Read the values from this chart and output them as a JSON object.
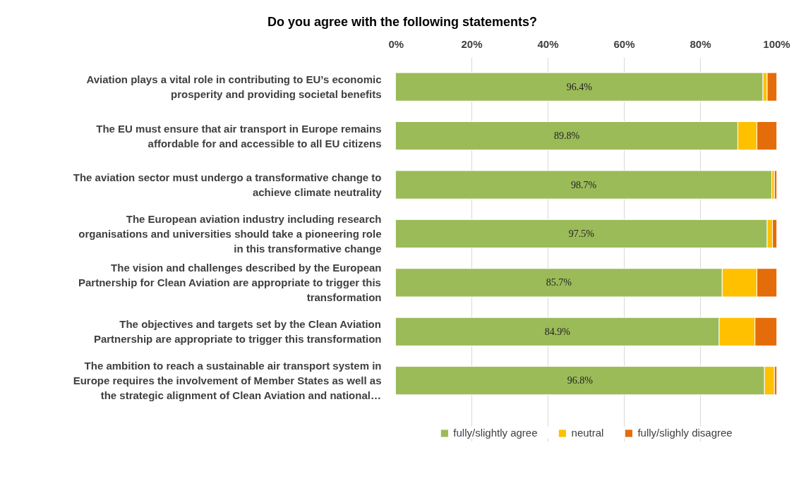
{
  "chart_data": {
    "type": "bar",
    "orientation": "horizontal",
    "stacked": true,
    "title": "Do you agree with the following statements?",
    "categories": [
      "Aviation plays a vital role in contributing to EU’s economic prosperity and providing societal benefits",
      "The EU must ensure that air transport in Europe remains affordable for and accessible to all EU citizens",
      "The aviation sector must undergo a transformative change to achieve climate neutrality",
      "The European aviation industry including research organisations and universities should take a pioneering role in this transformative change",
      "The vision and challenges described by the European Partnership for Clean Aviation are appropriate to trigger this transformation",
      "The objectives and targets set by the Clean Aviation Partnership are appropriate to trigger this transformation",
      "The ambition to reach a sustainable air transport system in Europe requires the involvement of Member States as well as the strategic alignment of Clean Aviation and national…"
    ],
    "series": [
      {
        "name": "fully/slightly agree",
        "color": "#9bbb59",
        "values": [
          96.4,
          89.8,
          98.7,
          97.5,
          85.7,
          84.9,
          96.8
        ],
        "value_labels": [
          "96.4%",
          "89.8%",
          "98.7%",
          "97.5%",
          "85.7%",
          "84.9%",
          "96.8%"
        ]
      },
      {
        "name": "neutral",
        "color": "#ffc000",
        "values": [
          1.1,
          5.0,
          0.7,
          1.4,
          9.1,
          9.4,
          2.6
        ]
      },
      {
        "name": "fully/slighly disagree",
        "color": "#e46c0a",
        "values": [
          2.5,
          5.2,
          0.6,
          1.1,
          5.2,
          5.7,
          0.6
        ]
      }
    ],
    "xlim": [
      0,
      100
    ],
    "xticks": [
      {
        "value": 0,
        "label": "0%"
      },
      {
        "value": 20,
        "label": "20%"
      },
      {
        "value": 40,
        "label": "40%"
      },
      {
        "value": 60,
        "label": "60%"
      },
      {
        "value": 80,
        "label": "80%"
      },
      {
        "value": 100,
        "label": "100%"
      }
    ],
    "grid": "x",
    "legend": "bottom"
  }
}
